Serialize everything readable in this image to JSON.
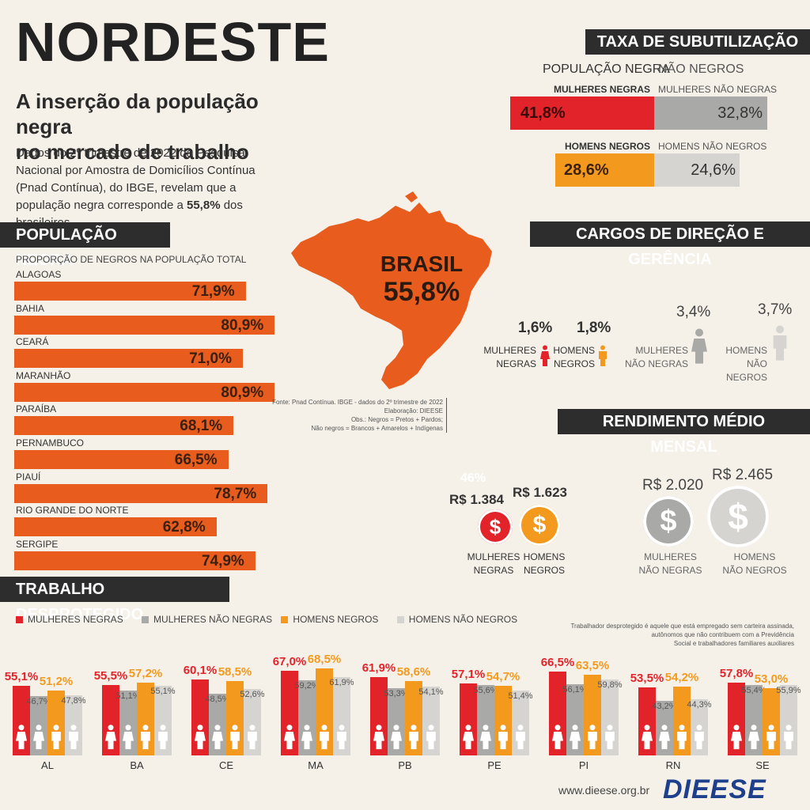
{
  "header": {
    "title": "NORDESTE",
    "subtitle_line1": "A inserção da população negra",
    "subtitle_line2": "no mercado de trabalho",
    "intro_pre": "Dados do 2º trimestre de 2022 da Pesquisa Nacional por Amostra de Domicílios Contínua (Pnad Contínua), do IBGE, revelam que a população negra corresponde a ",
    "intro_bold": "55,8%",
    "intro_post": " dos brasileiros."
  },
  "colors": {
    "orange_state": "#e85c1e",
    "red": "#e2232a",
    "gray_dark": "#a9a9a7",
    "orange": "#f39a1e",
    "gray_light": "#d6d4d0",
    "section_bg": "#2d2d2d"
  },
  "populacao": {
    "heading": "POPULAÇÃO NEGRA",
    "subheading": "PROPORÇÃO DE NEGROS NA POPULAÇÃO TOTAL"
  },
  "brasil": {
    "label": "BRASIL",
    "value": "55,8%"
  },
  "source": {
    "line1": "Fonte: Pnad Contínua. IBGE - dados do 2º trimestre de 2022",
    "line2": "Elaboração: DIEESE",
    "line3": "Obs.: Negros = Pretos + Pardos;",
    "line4": "Não negros = Brancos + Amarelos + Indígenas"
  },
  "subutilizacao": {
    "heading": "TAXA DE SUBUTILIZAÇÃO",
    "group_negra": "POPULAÇÃO NEGRA",
    "group_nao": "NÃO NEGROS",
    "mulheres_negras_label": "MULHERES NEGRAS",
    "mulheres_nao_label": "MULHERES NÃO NEGRAS",
    "mulheres_negras_value": "41,8%",
    "mulheres_nao_value": "32,8%",
    "homens_negros_label": "HOMENS NEGROS",
    "homens_nao_label": "HOMENS NÃO NEGROS",
    "homens_negros_value": "28,6%",
    "homens_nao_value": "24,6%"
  },
  "cargos": {
    "heading": "CARGOS DE DIREÇÃO E GERÊNCIA",
    "mn_value": "1,6%",
    "mn_l1": "MULHERES",
    "mn_l2": "NEGRAS",
    "hn_value": "1,8%",
    "hn_l1": "HOMENS",
    "hn_l2": "NEGROS",
    "mnn_value": "3,4%",
    "mnn_l1": "MULHERES",
    "mnn_l2": "NÃO NEGRAS",
    "hnn_value": "3,7%",
    "hnn_l1": "HOMENS",
    "hnn_l2": "NÃO NEGROS"
  },
  "rendimento": {
    "heading": "RENDIMENTO MÉDIO MENSAL",
    "ghost": "46%",
    "mn_value": "R$ 1.384",
    "mn_l1": "MULHERES",
    "mn_l2": "NEGRAS",
    "hn_value": "R$ 1.623",
    "hn_l1": "HOMENS",
    "hn_l2": "NEGROS",
    "mnn_value": "R$ 2.020",
    "mnn_l1": "MULHERES",
    "mnn_l2": "NÃO NEGRAS",
    "hnn_value": "R$ 2.465",
    "hnn_l1": "HOMENS",
    "hnn_l2": "NÃO NEGROS",
    "symbol": "$"
  },
  "desprotegido": {
    "heading": "TRABALHO DESPROTEGIDO",
    "legend": [
      "MULHERES NEGRAS",
      "MULHERES NÃO NEGRAS",
      "HOMENS NEGROS",
      "HOMENS NÃO NEGROS"
    ],
    "note1": "Trabalhador desprotegido é aquele que está empregado sem carteira assinada,",
    "note2": "autônomos que não contribuem  com a Previdência",
    "note3": "Social e trabalhadores familiares auxiliares"
  },
  "footer": {
    "url": "www.dieese.org.br",
    "logo": "DIEESE"
  },
  "chart_data": [
    {
      "type": "bar",
      "title": "POPULAÇÃO NEGRA",
      "subtitle": "PROPORÇÃO DE NEGROS NA POPULAÇÃO TOTAL",
      "orientation": "horizontal",
      "categories": [
        "ALAGOAS",
        "BAHIA",
        "CEARÁ",
        "MARANHÃO",
        "PARAÍBA",
        "PERNAMBUCO",
        "PIAUÍ",
        "RIO GRANDE DO NORTE",
        "SERGIPE"
      ],
      "values": [
        71.9,
        80.9,
        71.0,
        80.9,
        68.1,
        66.5,
        78.7,
        62.8,
        74.9
      ],
      "labels": [
        "71,9%",
        "80,9%",
        "71,0%",
        "80,9%",
        "68,1%",
        "66,5%",
        "78,7%",
        "62,8%",
        "74,9%"
      ]
    },
    {
      "type": "bar",
      "title": "TRABALHO DESPROTEGIDO",
      "categories": [
        "AL",
        "BA",
        "CE",
        "MA",
        "PB",
        "PE",
        "PI",
        "RN",
        "SE"
      ],
      "series": [
        {
          "name": "MULHERES NEGRAS",
          "values": [
            55.1,
            55.5,
            60.1,
            67.0,
            61.9,
            57.1,
            66.5,
            53.5,
            57.8
          ],
          "labels": [
            "55,1%",
            "55,5%",
            "60,1%",
            "67,0%",
            "61,9%",
            "57,1%",
            "66,5%",
            "53,5%",
            "57,8%"
          ]
        },
        {
          "name": "MULHERES NÃO NEGRAS",
          "values": [
            46.7,
            51.1,
            48.5,
            59.2,
            53.3,
            55.6,
            56.1,
            43.2,
            55.4
          ],
          "labels": [
            "46,7%",
            "51,1%",
            "48,5%",
            "59,2%",
            "53,3%",
            "55,6%",
            "56,1%",
            "43,2%",
            "55,4%"
          ]
        },
        {
          "name": "HOMENS NEGROS",
          "values": [
            51.2,
            57.2,
            58.5,
            68.5,
            58.6,
            54.7,
            63.5,
            54.2,
            53.0
          ],
          "labels": [
            "51,2%",
            "57,2%",
            "58,5%",
            "68,5%",
            "58,6%",
            "54,7%",
            "63,5%",
            "54,2%",
            "53,0%"
          ]
        },
        {
          "name": "HOMENS NÃO NEGROS",
          "values": [
            47.8,
            55.1,
            52.6,
            61.9,
            54.1,
            51.4,
            59.8,
            44.3,
            55.9
          ],
          "labels": [
            "47,8%",
            "55,1%",
            "52,6%",
            "61,9%",
            "54,1%",
            "51,4%",
            "59,8%",
            "44,3%",
            "55,9%"
          ]
        }
      ]
    },
    {
      "type": "bar",
      "title": "TAXA DE SUBUTILIZAÇÃO",
      "categories": [
        "MULHERES NEGRAS",
        "MULHERES NÃO NEGRAS",
        "HOMENS NEGROS",
        "HOMENS NÃO NEGROS"
      ],
      "values": [
        41.8,
        32.8,
        28.6,
        24.6
      ]
    }
  ]
}
